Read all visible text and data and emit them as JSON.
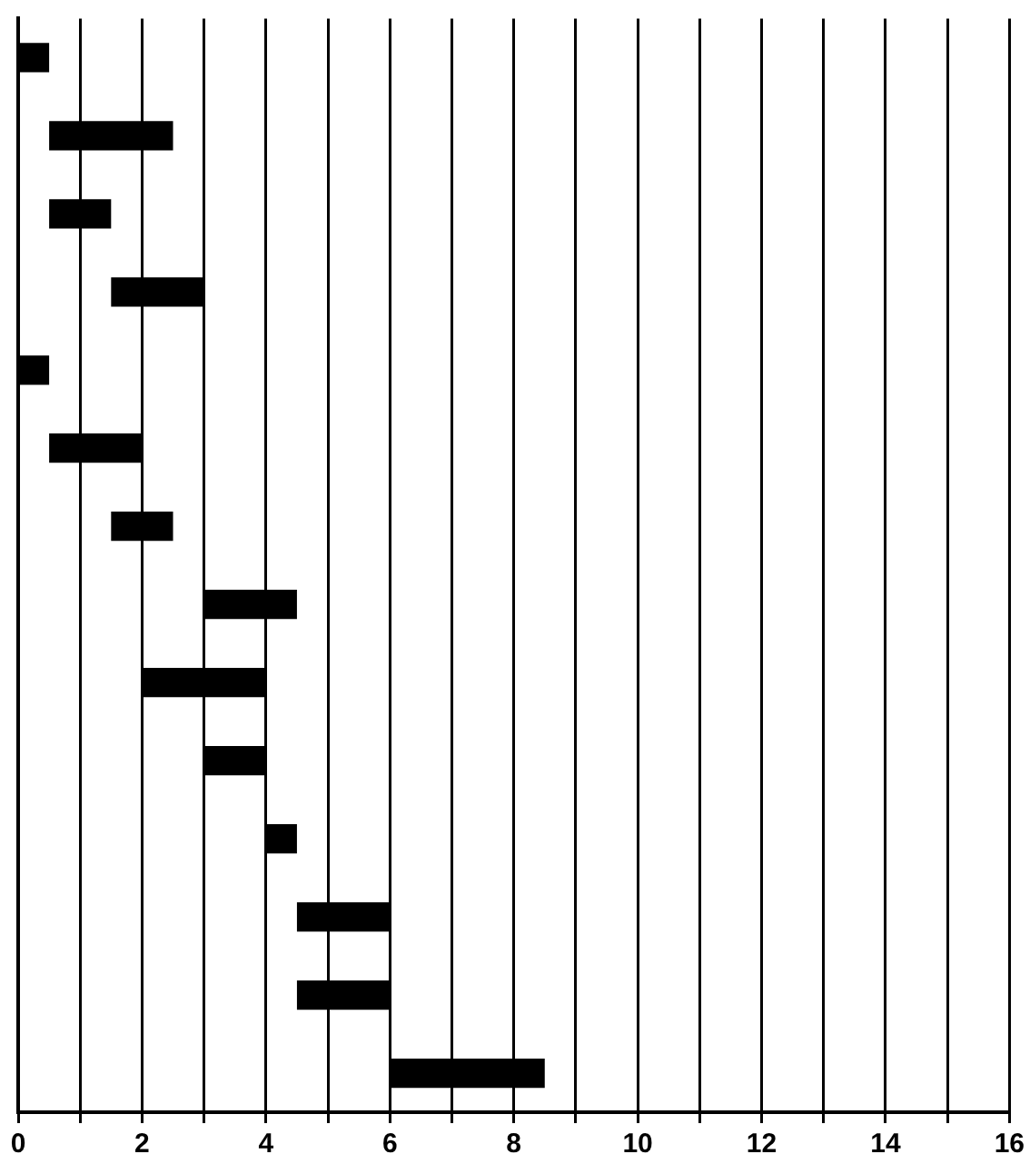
{
  "chart_data": {
    "type": "bar",
    "orientation": "horizontal",
    "categories": [
      null,
      null,
      null,
      null,
      null,
      null,
      null,
      null,
      null,
      null,
      null,
      null,
      null,
      null
    ],
    "base": [
      0,
      0.5,
      0.5,
      1.5,
      0,
      0.5,
      1.5,
      3,
      2,
      3,
      4,
      4.5,
      4.5,
      6
    ],
    "values": [
      0.5,
      2,
      1,
      1.5,
      0.5,
      1.5,
      1,
      1.5,
      2,
      1,
      0.5,
      1.5,
      1.5,
      2.5
    ],
    "color": "#000000",
    "xlim": [
      0,
      16
    ],
    "xticks": [
      0,
      {
        "value": 1,
        "label": null
      },
      2,
      {
        "value": 3,
        "label": null
      },
      4,
      {
        "value": 5,
        "label": null
      },
      6,
      {
        "value": 7,
        "label": null
      },
      8,
      {
        "value": 9,
        "label": null
      },
      10,
      {
        "value": 11,
        "label": null
      },
      12,
      {
        "value": 13,
        "label": null
      },
      14,
      {
        "value": 15,
        "label": null
      },
      16
    ],
    "grid": "x",
    "legend": false
  }
}
